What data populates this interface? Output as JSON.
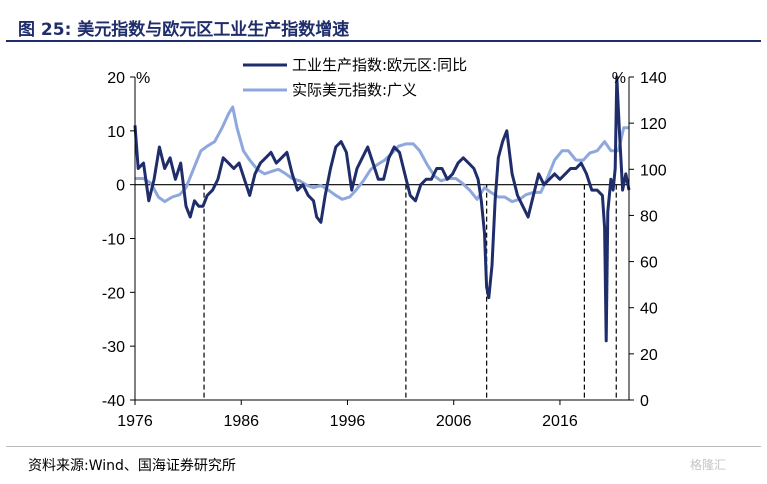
{
  "header": {
    "title": "图 25:  美元指数与欧元区工业生产指数增速"
  },
  "footer": {
    "source": "资料来源:Wind、国海证券研究所",
    "watermark": "格隆汇"
  },
  "chart_data": {
    "type": "line",
    "left_axis": {
      "unit": "%",
      "ylim": [
        -40,
        20
      ],
      "ticks": [
        20,
        10,
        0,
        -10,
        -20,
        -30,
        -40
      ]
    },
    "right_axis": {
      "unit": "%",
      "ylim": [
        0,
        140
      ],
      "ticks": [
        140,
        120,
        100,
        80,
        60,
        40,
        20,
        0
      ]
    },
    "x_axis": {
      "xlim": [
        1976,
        2022.5
      ],
      "ticks": [
        1976,
        1986,
        1996,
        2006,
        2016
      ]
    },
    "legend": {
      "placement": "top-center"
    },
    "grid": false,
    "recession_markers": [
      1982.5,
      2001.5,
      2009.1,
      2018.3,
      2021.3
    ],
    "series": [
      {
        "name": "工业生产指数:欧元区:同比",
        "axis": "left",
        "color": "#1f2d6b",
        "x": [
          1976.0,
          1976.3,
          1976.8,
          1977.3,
          1977.8,
          1978.3,
          1978.8,
          1979.3,
          1979.8,
          1980.3,
          1980.8,
          1981.2,
          1981.6,
          1982.0,
          1982.4,
          1982.8,
          1983.3,
          1983.8,
          1984.3,
          1984.8,
          1985.3,
          1985.8,
          1986.3,
          1986.8,
          1987.3,
          1987.8,
          1988.3,
          1988.8,
          1989.3,
          1989.8,
          1990.3,
          1990.8,
          1991.3,
          1991.8,
          1992.3,
          1992.8,
          1993.1,
          1993.5,
          1993.9,
          1994.4,
          1994.9,
          1995.4,
          1995.9,
          1996.4,
          1996.9,
          1997.4,
          1997.9,
          1998.4,
          1998.9,
          1999.4,
          1999.9,
          2000.4,
          2000.9,
          2001.4,
          2001.9,
          2002.4,
          2002.9,
          2003.4,
          2003.9,
          2004.4,
          2004.9,
          2005.4,
          2005.9,
          2006.4,
          2006.9,
          2007.4,
          2007.9,
          2008.3,
          2008.6,
          2008.9,
          2009.1,
          2009.3,
          2009.6,
          2009.9,
          2010.2,
          2010.6,
          2011.0,
          2011.5,
          2012.0,
          2012.5,
          2013.0,
          2013.5,
          2014.0,
          2014.5,
          2015.0,
          2015.5,
          2016.0,
          2016.5,
          2017.0,
          2017.5,
          2018.0,
          2018.5,
          2019.0,
          2019.5,
          2020.0,
          2020.2,
          2020.35,
          2020.5,
          2020.8,
          2021.0,
          2021.2,
          2021.35,
          2021.6,
          2021.9,
          2022.2,
          2022.5
        ],
        "values": [
          11,
          3,
          4,
          -3,
          1,
          7,
          3,
          5,
          1,
          4,
          -4,
          -6,
          -3,
          -4,
          -4,
          -2,
          -1,
          1,
          5,
          4,
          3,
          4,
          1,
          -2,
          2,
          4,
          5,
          6,
          4,
          5,
          6,
          2,
          -1,
          0,
          -2,
          -3,
          -6,
          -7,
          -2,
          3,
          7,
          8,
          6,
          -1,
          3,
          5,
          7,
          4,
          1,
          1,
          5,
          7,
          6,
          2,
          -2,
          -3,
          0,
          1,
          1,
          3,
          3,
          1,
          2,
          4,
          5,
          4,
          3,
          1,
          -3,
          -9,
          -19,
          -21,
          -15,
          -3,
          5,
          8,
          10,
          2,
          -2,
          -4,
          -6,
          -2,
          2,
          0,
          1,
          2,
          1,
          2,
          3,
          3,
          4,
          2,
          -1,
          -1,
          -2,
          -8,
          -29,
          -5,
          1,
          -1,
          3,
          20,
          10,
          -1,
          2,
          -1
        ]
      },
      {
        "name": "实际美元指数:广义",
        "axis": "right",
        "color": "#8ea7dc",
        "x": [
          1976.0,
          1976.8,
          1977.5,
          1978.2,
          1978.8,
          1979.5,
          1980.2,
          1980.8,
          1981.5,
          1982.2,
          1982.8,
          1983.5,
          1984.2,
          1984.8,
          1985.2,
          1985.6,
          1986.2,
          1986.8,
          1987.5,
          1988.2,
          1988.8,
          1989.5,
          1990.2,
          1990.8,
          1991.5,
          1992.2,
          1992.8,
          1993.5,
          1994.2,
          1994.8,
          1995.5,
          1996.2,
          1996.8,
          1997.5,
          1998.2,
          1998.8,
          1999.5,
          2000.2,
          2000.8,
          2001.5,
          2002.2,
          2002.8,
          2003.5,
          2004.2,
          2004.8,
          2005.5,
          2006.2,
          2006.8,
          2007.5,
          2008.2,
          2008.9,
          2009.5,
          2010.2,
          2010.8,
          2011.5,
          2012.2,
          2012.8,
          2013.5,
          2014.2,
          2014.8,
          2015.5,
          2016.2,
          2016.8,
          2017.5,
          2018.2,
          2018.8,
          2019.5,
          2020.2,
          2020.8,
          2021.5,
          2022.0,
          2022.5
        ],
        "values": [
          96,
          96,
          94,
          88,
          86,
          88,
          89,
          92,
          100,
          108,
          110,
          112,
          118,
          124,
          127,
          118,
          108,
          104,
          100,
          98,
          99,
          100,
          98,
          96,
          95,
          93,
          92,
          93,
          91,
          89,
          87,
          88,
          91,
          95,
          100,
          102,
          104,
          107,
          110,
          111,
          111,
          108,
          102,
          97,
          95,
          96,
          96,
          94,
          91,
          87,
          92,
          90,
          88,
          88,
          86,
          87,
          89,
          90,
          90,
          96,
          104,
          108,
          108,
          104,
          104,
          107,
          108,
          112,
          108,
          108,
          118,
          118
        ]
      }
    ]
  }
}
